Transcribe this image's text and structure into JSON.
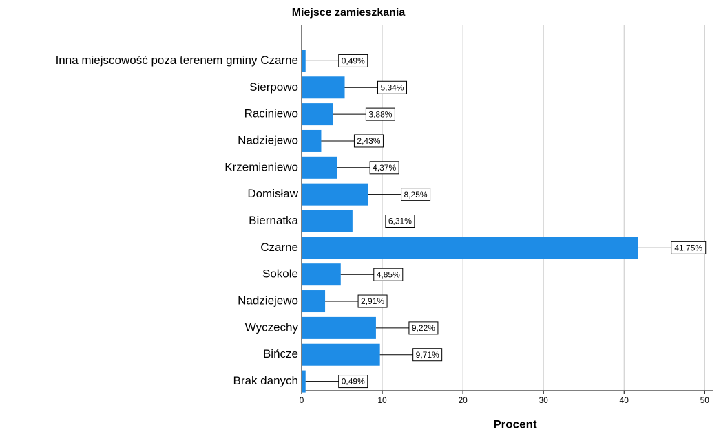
{
  "chart_data": {
    "type": "barh",
    "title": "Miejsce zamieszkania",
    "xlabel": "Procent",
    "categories": [
      "Inna miejscowość poza terenem gminy Czarne",
      "Sierpowo",
      "Raciniewo",
      "Nadziejewo",
      "Krzemieniewo",
      "Domisław",
      "Biernatka",
      "Czarne",
      "Sokole",
      "Nadziejewo",
      "Wyczechy",
      "Bińcze",
      "Brak danych"
    ],
    "values": [
      0.49,
      5.34,
      3.88,
      2.43,
      4.37,
      8.25,
      6.31,
      41.75,
      4.85,
      2.91,
      9.22,
      9.71,
      0.49
    ],
    "value_labels": [
      "0,49%",
      "5,34%",
      "3,88%",
      "2,43%",
      "4,37%",
      "8,25%",
      "6,31%",
      "41,75%",
      "4,85%",
      "2,91%",
      "9,22%",
      "9,71%",
      "0,49%"
    ],
    "color": "#1e8ce6",
    "xlim": [
      0,
      51
    ],
    "xticks": [
      0,
      10,
      20,
      30,
      40,
      50
    ],
    "grid": true
  }
}
